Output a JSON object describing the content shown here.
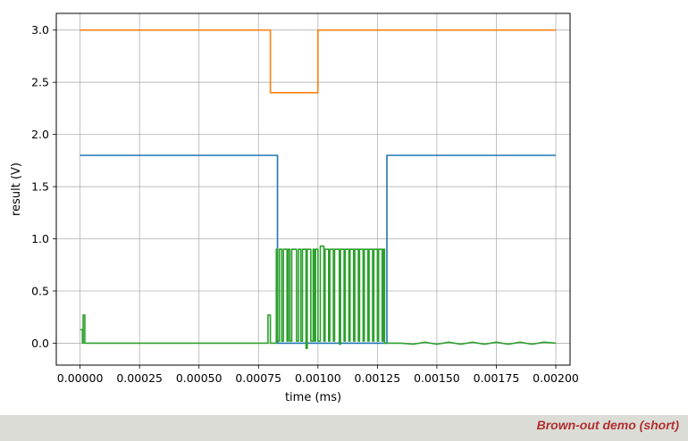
{
  "chart_data": {
    "type": "line",
    "xlabel": "time (ms)",
    "ylabel": "result (V)",
    "xlim": [
      -0.0001,
      0.00206
    ],
    "ylim": [
      -0.21,
      3.16
    ],
    "xticks": [
      0.0,
      0.00025,
      0.0005,
      0.00075,
      0.001,
      0.00125,
      0.0015,
      0.00175,
      0.002
    ],
    "xtick_labels": [
      "0.00000",
      "0.00025",
      "0.00050",
      "0.00075",
      "0.00100",
      "0.00125",
      "0.00150",
      "0.00175",
      "0.00200"
    ],
    "yticks": [
      0.0,
      0.5,
      1.0,
      1.5,
      2.0,
      2.5,
      3.0
    ],
    "ytick_labels": [
      "0.0",
      "0.5",
      "1.0",
      "1.5",
      "2.0",
      "2.5",
      "3.0"
    ],
    "grid": true,
    "series": [
      {
        "color": "#ff7f0e",
        "x": [
          0.0,
          0.0008,
          0.0008,
          0.001,
          0.001,
          0.002
        ],
        "y": [
          3.0,
          3.0,
          2.4,
          2.4,
          3.0,
          3.0
        ]
      },
      {
        "color": "#1f77b4",
        "x": [
          0.0,
          0.00083,
          0.00083,
          0.00129,
          0.00129,
          0.002
        ],
        "y": [
          1.8,
          1.8,
          0.0,
          0.0,
          1.8,
          1.8
        ]
      },
      {
        "color": "#2ca02c",
        "x": [
          0.0,
          1e-05,
          1e-05,
          1.3e-05,
          1.3e-05,
          2e-05,
          2e-05,
          0.00079,
          0.00079,
          0.0008,
          0.0008,
          0.000825,
          0.000825,
          0.00083,
          0.00083,
          0.000838,
          0.000838,
          0.000848,
          0.000848,
          0.000855,
          0.000855,
          0.00087,
          0.00087,
          0.000875,
          0.000875,
          0.000882,
          0.000882,
          0.00089,
          0.00089,
          0.00091,
          0.00091,
          0.000918,
          0.000918,
          0.000928,
          0.000928,
          0.000935,
          0.000935,
          0.00095,
          0.00095,
          0.000955,
          0.000955,
          0.00097,
          0.00097,
          0.00098,
          0.00098,
          0.000985,
          0.000985,
          0.00099,
          0.00099,
          0.001,
          0.001,
          0.00101,
          0.00101,
          0.001025,
          0.001025,
          0.00103,
          0.00103,
          0.001045,
          0.001045,
          0.00105,
          0.00105,
          0.001065,
          0.001065,
          0.00107,
          0.00107,
          0.00109,
          0.00109,
          0.001095,
          0.001095,
          0.00111,
          0.00111,
          0.001115,
          0.001115,
          0.00113,
          0.00113,
          0.001135,
          0.001135,
          0.00115,
          0.00115,
          0.001155,
          0.001155,
          0.00117,
          0.00117,
          0.001175,
          0.001175,
          0.00119,
          0.00119,
          0.001195,
          0.001195,
          0.00121,
          0.00121,
          0.001215,
          0.001215,
          0.00123,
          0.00123,
          0.001235,
          0.001235,
          0.00125,
          0.00125,
          0.001255,
          0.001255,
          0.00127,
          0.00127,
          0.001275,
          0.001275,
          0.00128,
          0.00128,
          0.00135,
          0.0014,
          0.00145,
          0.0015,
          0.00155,
          0.0016,
          0.00165,
          0.0017,
          0.00175,
          0.0018,
          0.00185,
          0.0019,
          0.00195,
          0.002
        ],
        "y": [
          0.13,
          0.13,
          0.0,
          0.0,
          0.27,
          0.27,
          0.0,
          0.0,
          0.27,
          0.27,
          0.0,
          0.0,
          0.9,
          0.9,
          0.02,
          0.02,
          0.9,
          0.9,
          0.02,
          0.02,
          0.9,
          0.9,
          0.02,
          0.02,
          0.9,
          0.9,
          0.02,
          0.02,
          0.9,
          0.9,
          0.02,
          0.02,
          0.9,
          0.9,
          0.02,
          0.02,
          0.9,
          0.9,
          -0.05,
          -0.05,
          0.9,
          0.9,
          0.02,
          0.02,
          0.9,
          0.9,
          0.02,
          0.02,
          0.9,
          0.9,
          0.02,
          0.02,
          0.93,
          0.93,
          0.02,
          0.02,
          0.9,
          0.9,
          0.02,
          0.02,
          0.9,
          0.9,
          0.02,
          0.02,
          0.9,
          0.9,
          -0.01,
          -0.01,
          0.9,
          0.9,
          0.02,
          0.02,
          0.9,
          0.9,
          0.02,
          0.02,
          0.9,
          0.9,
          0.02,
          0.02,
          0.9,
          0.9,
          0.02,
          0.02,
          0.9,
          0.9,
          0.02,
          0.02,
          0.9,
          0.9,
          0.02,
          0.02,
          0.9,
          0.9,
          0.02,
          0.02,
          0.9,
          0.9,
          0.02,
          0.02,
          0.9,
          0.9,
          0.02,
          0.02,
          0.9,
          0.9,
          0.0,
          0.0,
          -0.01,
          0.01,
          -0.01,
          0.01,
          -0.01,
          0.01,
          -0.01,
          0.01,
          -0.01,
          0.01,
          -0.01,
          0.01,
          0.0
        ]
      }
    ]
  },
  "footer": {
    "caption": "Brown-out demo (short)"
  }
}
